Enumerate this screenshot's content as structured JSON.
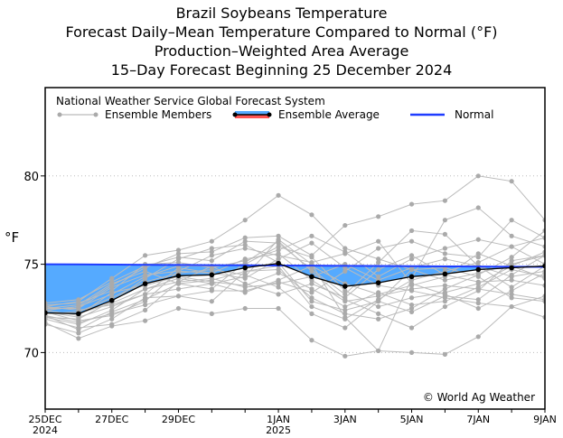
{
  "chart_data": {
    "type": "line",
    "title": "Brazil Soybeans Temperature",
    "subtitles": [
      "Forecast Daily–Mean Temperature Compared to Normal (°F)",
      "Production–Weighted Area Average",
      "15–Day Forecast Beginning 25 December 2024"
    ],
    "source_label": "National Weather Service Global Forecast System",
    "copyright": "© World Ag Weather",
    "ylabel": "°F",
    "ylim": [
      66.8,
      85
    ],
    "yticks": [
      70,
      75,
      80
    ],
    "grid": "horizontal dotted at y ticks",
    "legend_placement": "top",
    "x_dates": [
      "2024-12-25",
      "2024-12-26",
      "2024-12-27",
      "2024-12-28",
      "2024-12-29",
      "2024-12-30",
      "2024-12-31",
      "2025-01-01",
      "2025-01-02",
      "2025-01-03",
      "2025-01-04",
      "2025-01-05",
      "2025-01-06",
      "2025-01-07",
      "2025-01-08",
      "2025-01-09"
    ],
    "xtick_labels": [
      {
        "date": "2024-12-25",
        "label": "25DEC",
        "sub": "2024"
      },
      {
        "date": "2024-12-27",
        "label": "27DEC",
        "sub": ""
      },
      {
        "date": "2024-12-29",
        "label": "29DEC",
        "sub": ""
      },
      {
        "date": "2025-01-01",
        "label": "1JAN",
        "sub": "2025"
      },
      {
        "date": "2025-01-03",
        "label": "3JAN",
        "sub": ""
      },
      {
        "date": "2025-01-05",
        "label": "5JAN",
        "sub": ""
      },
      {
        "date": "2025-01-07",
        "label": "7JAN",
        "sub": ""
      },
      {
        "date": "2025-01-09",
        "label": "9JAN",
        "sub": ""
      }
    ],
    "legend": [
      {
        "key": "members",
        "label": "Ensemble Members"
      },
      {
        "key": "average",
        "label": "Ensemble Average"
      },
      {
        "key": "normal",
        "label": "Normal"
      }
    ],
    "colors": {
      "members": "#aaaaaa",
      "average": "#000000",
      "normal": "#1f3cff",
      "below_fill": "#55aaff",
      "above_fill": "#ff5555"
    },
    "series": [
      {
        "name": "Ensemble Average",
        "values": [
          72.25,
          72.2,
          72.95,
          73.9,
          74.35,
          74.4,
          74.8,
          75.05,
          74.3,
          73.75,
          73.95,
          74.3,
          74.45,
          74.7,
          74.8,
          74.9
        ]
      },
      {
        "name": "Normal",
        "values": [
          75.0,
          74.99,
          74.98,
          74.97,
          74.96,
          74.95,
          74.94,
          74.93,
          74.92,
          74.91,
          74.9,
          74.89,
          74.88,
          74.87,
          74.86,
          74.85
        ]
      }
    ],
    "members": [
      [
        72.6,
        72.9,
        74.2,
        75.5,
        75.8,
        76.3,
        77.5,
        78.9,
        77.8,
        75.9,
        75.3,
        74.7,
        74.1,
        74.5,
        75.0,
        75.5
      ],
      [
        72.4,
        72.6,
        73.8,
        74.8,
        75.6,
        75.7,
        76.5,
        76.6,
        75.5,
        77.2,
        77.7,
        78.4,
        78.6,
        80.0,
        79.7,
        77.5
      ],
      [
        72.0,
        71.6,
        72.4,
        73.6,
        74.2,
        73.9,
        74.3,
        76.4,
        75.0,
        72.0,
        70.1,
        70.0,
        69.9,
        70.9,
        72.6,
        73.2
      ],
      [
        71.7,
        70.8,
        71.5,
        71.8,
        72.5,
        72.2,
        72.5,
        72.5,
        70.7,
        69.8,
        70.1,
        74.2,
        77.5,
        78.2,
        76.6,
        76.0
      ],
      [
        72.8,
        73.0,
        74.0,
        74.9,
        75.4,
        75.2,
        76.3,
        76.2,
        74.7,
        73.3,
        75.1,
        76.9,
        76.7,
        74.9,
        73.7,
        74.9
      ],
      [
        72.3,
        72.0,
        72.6,
        73.3,
        74.8,
        74.5,
        74.2,
        75.3,
        76.2,
        74.8,
        73.8,
        73.5,
        73.1,
        72.8,
        72.6,
        72.0
      ],
      [
        72.1,
        71.7,
        72.2,
        72.7,
        73.2,
        73.5,
        73.5,
        74.0,
        73.4,
        74.6,
        75.9,
        76.3,
        75.6,
        75.4,
        77.5,
        76.5
      ],
      [
        72.5,
        72.7,
        73.9,
        74.6,
        73.9,
        73.6,
        75.1,
        76.3,
        74.6,
        73.0,
        72.2,
        71.4,
        72.6,
        73.5,
        75.2,
        75.5
      ],
      [
        72.2,
        72.3,
        73.1,
        74.0,
        74.5,
        74.7,
        74.4,
        73.7,
        72.2,
        71.4,
        72.9,
        74.7,
        74.8,
        74.3,
        73.1,
        72.9
      ],
      [
        72.7,
        72.8,
        73.5,
        75.0,
        75.1,
        74.8,
        75.2,
        75.8,
        76.6,
        75.7,
        74.3,
        75.3,
        75.9,
        76.4,
        76.0,
        75.0
      ],
      [
        71.9,
        71.4,
        71.6,
        72.4,
        74.0,
        74.9,
        73.9,
        73.3,
        73.9,
        73.1,
        74.7,
        75.5,
        74.4,
        74.0,
        74.1,
        73.8
      ],
      [
        72.4,
        72.1,
        73.4,
        73.8,
        74.3,
        74.0,
        73.8,
        74.5,
        73.6,
        72.6,
        73.4,
        72.7,
        72.9,
        73.7,
        74.7,
        74.3
      ],
      [
        72.0,
        71.9,
        72.9,
        74.2,
        75.3,
        75.9,
        76.1,
        75.1,
        72.9,
        72.4,
        72.9,
        72.3,
        73.2,
        73.0,
        74.4,
        75.5
      ],
      [
        72.6,
        72.4,
        72.7,
        73.3,
        73.6,
        73.9,
        73.4,
        74.1,
        74.9,
        73.9,
        73.3,
        73.8,
        74.3,
        75.6,
        74.9,
        74.2
      ],
      [
        72.3,
        71.8,
        72.1,
        72.9,
        74.6,
        75.5,
        75.9,
        75.5,
        75.1,
        75.6,
        76.3,
        73.9,
        73.3,
        72.5,
        73.5,
        74.5
      ],
      [
        71.6,
        71.1,
        71.9,
        73.1,
        73.2,
        72.9,
        74.6,
        74.7,
        73.1,
        72.2,
        71.9,
        72.5,
        73.6,
        74.4,
        75.4,
        76.9
      ],
      [
        72.5,
        72.5,
        73.7,
        74.4,
        74.6,
        74.5,
        75.3,
        75.6,
        74.1,
        72.9,
        73.2,
        73.6,
        73.8,
        73.6,
        73.3,
        73.0
      ],
      [
        72.2,
        72.2,
        72.8,
        73.6,
        74.0,
        74.2,
        73.7,
        73.9,
        74.3,
        75.0,
        74.1,
        74.8,
        75.3,
        74.9,
        74.3,
        74.6
      ],
      [
        72.1,
        71.3,
        72.3,
        73.0,
        73.9,
        74.1,
        74.6,
        74.9,
        72.6,
        71.9,
        73.0,
        74.1,
        74.6,
        75.1,
        76.0,
        76.5
      ],
      [
        72.4,
        72.6,
        73.3,
        74.3,
        74.9,
        74.9,
        75.0,
        76.0,
        75.4,
        73.5,
        72.6,
        73.1,
        73.4,
        73.9,
        74.9,
        75.7
      ]
    ]
  }
}
